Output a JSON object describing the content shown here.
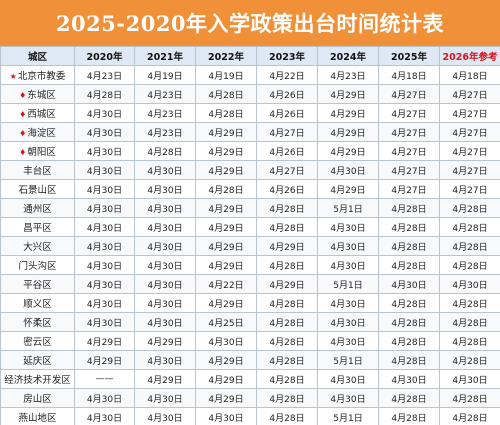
{
  "title": "2025-2020年入学政策出台时间统计表",
  "colors": {
    "title_bg": "#f0913a",
    "header_bg": "#dfe8f5",
    "ref_header": "#d4161d",
    "marker": "#d4161d"
  },
  "headers": [
    "城区",
    "2020年",
    "2021年",
    "2022年",
    "2023年",
    "2024年",
    "2025年",
    "2026年参考"
  ],
  "rows": [
    {
      "marker": "★",
      "district": "北京市教委",
      "values": [
        "4月23日",
        "4月19日",
        "4月19日",
        "4月22日",
        "4月23日",
        "4月18日",
        "4月18日"
      ]
    },
    {
      "marker": "♦",
      "district": "东城区",
      "values": [
        "4月28日",
        "4月23日",
        "4月28日",
        "4月26日",
        "4月29日",
        "4月27日",
        "4月27日"
      ]
    },
    {
      "marker": "♦",
      "district": "西城区",
      "values": [
        "4月30日",
        "4月23日",
        "4月28日",
        "4月26日",
        "4月29日",
        "4月27日",
        "4月27日"
      ]
    },
    {
      "marker": "♦",
      "district": "海淀区",
      "values": [
        "4月30日",
        "4月23日",
        "4月29日",
        "4月27日",
        "4月29日",
        "4月27日",
        "4月27日"
      ]
    },
    {
      "marker": "♦",
      "district": "朝阳区",
      "values": [
        "4月30日",
        "4月28日",
        "4月29日",
        "4月26日",
        "4月29日",
        "4月27日",
        "4月27日"
      ]
    },
    {
      "marker": "",
      "district": "丰台区",
      "values": [
        "4月30日",
        "4月30日",
        "4月29日",
        "4月27日",
        "4月30日",
        "4月27日",
        "4月27日"
      ]
    },
    {
      "marker": "",
      "district": "石景山区",
      "values": [
        "4月30日",
        "4月30日",
        "4月28日",
        "4月26日",
        "4月29日",
        "4月27日",
        "4月27日"
      ]
    },
    {
      "marker": "",
      "district": "通州区",
      "values": [
        "4月30日",
        "4月30日",
        "4月29日",
        "4月28日",
        "5月1日",
        "4月28日",
        "4月28日"
      ]
    },
    {
      "marker": "",
      "district": "昌平区",
      "values": [
        "4月30日",
        "4月30日",
        "4月29日",
        "4月28日",
        "4月30日",
        "4月28日",
        "4月28日"
      ]
    },
    {
      "marker": "",
      "district": "大兴区",
      "values": [
        "4月30日",
        "4月30日",
        "4月29日",
        "4月29日",
        "4月30日",
        "4月28日",
        "4月28日"
      ]
    },
    {
      "marker": "",
      "district": "门头沟区",
      "values": [
        "4月30日",
        "4月30日",
        "4月29日",
        "4月28日",
        "4月30日",
        "4月28日",
        "4月28日"
      ]
    },
    {
      "marker": "",
      "district": "平谷区",
      "values": [
        "4月30日",
        "4月30日",
        "4月22日",
        "4月29日",
        "5月1日",
        "4月30日",
        "4月30日"
      ]
    },
    {
      "marker": "",
      "district": "顺义区",
      "values": [
        "4月30日",
        "4月30日",
        "4月29日",
        "4月28日",
        "4月30日",
        "4月28日",
        "4月28日"
      ]
    },
    {
      "marker": "",
      "district": "怀柔区",
      "values": [
        "4月30日",
        "4月30日",
        "4月25日",
        "4月28日",
        "4月30日",
        "4月28日",
        "4月28日"
      ]
    },
    {
      "marker": "",
      "district": "密云区",
      "values": [
        "4月29日",
        "4月29日",
        "4月30日",
        "4月28日",
        "4月30日",
        "4月28日",
        "4月28日"
      ]
    },
    {
      "marker": "",
      "district": "延庆区",
      "values": [
        "4月29日",
        "4月30日",
        "4月29日",
        "4月28日",
        "5月1日",
        "4月28日",
        "4月28日"
      ]
    },
    {
      "marker": "",
      "district": "经济技术开发区",
      "values": [
        "——",
        "4月29日",
        "4月29日",
        "4月28日",
        "4月30日",
        "4月30日",
        "4月30日"
      ]
    },
    {
      "marker": "",
      "district": "房山区",
      "values": [
        "4月30日",
        "4月30日",
        "4月29日",
        "4月28日",
        "4月30日",
        "4月28日",
        "4月28日"
      ]
    },
    {
      "marker": "",
      "district": "燕山地区",
      "values": [
        "4月30日",
        "4月30日",
        "4月30日",
        "4月28日",
        "5月1日",
        "4月28日",
        "4月28日"
      ]
    }
  ]
}
